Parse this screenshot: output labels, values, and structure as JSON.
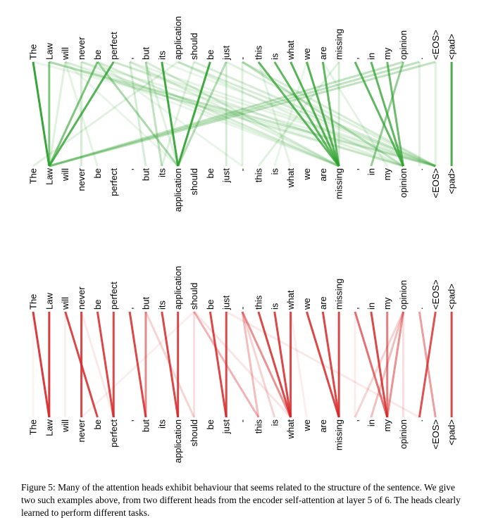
{
  "tokens": [
    "The",
    "Law",
    "will",
    "never",
    "be",
    "perfect",
    ",",
    "but",
    "its",
    "application",
    "should",
    "be",
    "just",
    "-",
    "this",
    "is",
    "what",
    "we",
    "are",
    "missing",
    ",",
    "in",
    "my",
    "opinion",
    ".",
    "<EOS>",
    "<pad>"
  ],
  "colors": {
    "head1": "#2ca02c",
    "head2": "#d62728"
  },
  "heads": [
    {
      "name": "head-a",
      "color_key": "head1",
      "edges": [
        [
          0,
          1,
          0.95
        ],
        [
          1,
          1,
          0.6
        ],
        [
          2,
          1,
          0.15
        ],
        [
          2,
          4,
          0.12
        ],
        [
          2,
          9,
          0.1
        ],
        [
          2,
          19,
          0.1
        ],
        [
          2,
          23,
          0.1
        ],
        [
          3,
          3,
          0.2
        ],
        [
          3,
          19,
          0.15
        ],
        [
          4,
          1,
          0.6
        ],
        [
          4,
          9,
          0.4
        ],
        [
          4,
          19,
          0.2
        ],
        [
          5,
          1,
          0.8
        ],
        [
          5,
          23,
          0.15
        ],
        [
          6,
          7,
          0.2
        ],
        [
          6,
          19,
          0.15
        ],
        [
          7,
          8,
          0.3
        ],
        [
          7,
          9,
          0.15
        ],
        [
          7,
          19,
          0.2
        ],
        [
          8,
          9,
          0.9
        ],
        [
          9,
          0,
          0.15
        ],
        [
          9,
          23,
          0.15
        ],
        [
          10,
          8,
          0.15
        ],
        [
          10,
          25,
          0.2
        ],
        [
          11,
          9,
          0.9
        ],
        [
          12,
          9,
          0.35
        ],
        [
          12,
          12,
          0.2
        ],
        [
          13,
          13,
          0.15
        ],
        [
          13,
          23,
          0.3
        ],
        [
          13,
          25,
          0.2
        ],
        [
          14,
          19,
          0.75
        ],
        [
          15,
          19,
          0.75
        ],
        [
          16,
          19,
          0.8
        ],
        [
          17,
          19,
          0.8
        ],
        [
          18,
          19,
          0.75
        ],
        [
          19,
          19,
          0.2
        ],
        [
          19,
          14,
          0.15
        ],
        [
          20,
          23,
          0.75
        ],
        [
          21,
          23,
          0.75
        ],
        [
          22,
          23,
          0.7
        ],
        [
          23,
          21,
          0.5
        ],
        [
          23,
          1,
          0.3
        ],
        [
          24,
          1,
          0.3
        ],
        [
          24,
          24,
          0.15
        ],
        [
          25,
          1,
          0.3
        ],
        [
          25,
          25,
          0.15
        ],
        [
          26,
          26,
          0.85
        ],
        [
          1,
          25,
          0.25
        ],
        [
          1,
          23,
          0.2
        ],
        [
          9,
          25,
          0.2
        ],
        [
          0,
          25,
          0.1
        ],
        [
          3,
          25,
          0.12
        ],
        [
          6,
          25,
          0.12
        ],
        [
          5,
          25,
          0.12
        ],
        [
          4,
          13,
          0.1
        ],
        [
          8,
          25,
          0.1
        ],
        [
          12,
          25,
          0.15
        ],
        [
          14,
          16,
          0.12
        ],
        [
          17,
          15,
          0.1
        ],
        [
          18,
          22,
          0.12
        ]
      ]
    },
    {
      "name": "head-b",
      "color_key": "head2",
      "edges": [
        [
          0,
          1,
          0.9
        ],
        [
          1,
          1,
          0.9
        ],
        [
          2,
          4,
          0.85
        ],
        [
          3,
          3,
          0.85
        ],
        [
          4,
          5,
          0.85
        ],
        [
          5,
          5,
          0.85
        ],
        [
          6,
          7,
          0.85
        ],
        [
          7,
          7,
          0.55
        ],
        [
          7,
          10,
          0.2
        ],
        [
          8,
          9,
          0.85
        ],
        [
          9,
          9,
          0.85
        ],
        [
          10,
          14,
          0.35
        ],
        [
          10,
          10,
          0.15
        ],
        [
          10,
          3,
          0.08
        ],
        [
          10,
          16,
          0.12
        ],
        [
          11,
          12,
          0.85
        ],
        [
          12,
          12,
          0.85
        ],
        [
          13,
          16,
          0.5
        ],
        [
          13,
          14,
          0.3
        ],
        [
          13,
          15,
          0.2
        ],
        [
          14,
          16,
          0.85
        ],
        [
          15,
          16,
          0.85
        ],
        [
          16,
          16,
          0.85
        ],
        [
          17,
          19,
          0.85
        ],
        [
          18,
          19,
          0.85
        ],
        [
          19,
          19,
          0.85
        ],
        [
          20,
          22,
          0.65
        ],
        [
          21,
          22,
          0.85
        ],
        [
          22,
          22,
          0.6
        ],
        [
          23,
          20,
          0.2
        ],
        [
          23,
          21,
          0.3
        ],
        [
          23,
          22,
          0.5
        ],
        [
          23,
          23,
          0.15
        ],
        [
          24,
          25,
          0.45
        ],
        [
          25,
          24,
          0.8
        ],
        [
          26,
          26,
          0.85
        ],
        [
          0,
          0,
          0.05
        ],
        [
          2,
          2,
          0.08
        ],
        [
          3,
          5,
          0.1
        ],
        [
          12,
          24,
          0.1
        ],
        [
          16,
          17,
          0.08
        ],
        [
          20,
          20,
          0.08
        ]
      ]
    }
  ],
  "caption": "Figure 5: Many of the attention heads exhibit behaviour that seems related to the structure of the sentence. We give two such examples above, from two different heads from the encoder self-attention at layer 5 of 6. The heads clearly learned to perform different tasks."
}
